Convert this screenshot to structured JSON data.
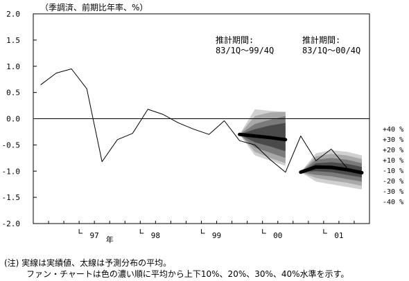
{
  "chart_data": {
    "type": "line",
    "ylabel": "（季調済、前期比年率、%）",
    "ylim": [
      -2.0,
      2.0
    ],
    "yticks": [
      "2.0",
      "1.5",
      "1.0",
      "0.5",
      "0.0",
      "-0.5",
      "-1.0",
      "-1.5",
      "-2.0"
    ],
    "yticks_values": [
      2.0,
      1.5,
      1.0,
      0.5,
      0.0,
      -0.5,
      -1.0,
      -1.5,
      -2.0
    ],
    "x_quarters": [
      "96Q2",
      "96Q3",
      "96Q4",
      "97Q1",
      "97Q2",
      "97Q3",
      "97Q4",
      "98Q1",
      "98Q2",
      "98Q3",
      "98Q4",
      "99Q1",
      "99Q2",
      "99Q3",
      "99Q4",
      "00Q1",
      "00Q2",
      "00Q3",
      "00Q4",
      "01Q1",
      "01Q2",
      "01Q3"
    ],
    "x_year_labels": [
      {
        "label": "97",
        "at_quarter": "97Q2"
      },
      {
        "label": "年",
        "at_quarter": "97Q3"
      },
      {
        "label": "98",
        "at_quarter": "98Q2"
      },
      {
        "label": "99",
        "at_quarter": "99Q2"
      },
      {
        "label": "00",
        "at_quarter": "00Q2"
      },
      {
        "label": "01",
        "at_quarter": "01Q2"
      }
    ],
    "series": [
      {
        "kind": "actual",
        "x": [
          "96Q2",
          "96Q3",
          "96Q4",
          "97Q1",
          "97Q2",
          "97Q3",
          "97Q4",
          "98Q1",
          "98Q2",
          "98Q3",
          "98Q4",
          "99Q1",
          "99Q2",
          "99Q3",
          "99Q4",
          "00Q1"
        ],
        "values": [
          0.65,
          0.87,
          0.95,
          0.57,
          -0.82,
          -0.4,
          -0.28,
          0.18,
          0.08,
          -0.08,
          -0.2,
          -0.3,
          -0.04,
          -0.42,
          -0.5,
          -0.78
        ]
      },
      {
        "kind": "actual-2",
        "x": [
          "00Q2",
          "00Q3",
          "00Q4",
          "01Q1",
          "01Q2"
        ],
        "values": [
          -1.02,
          -0.33,
          -0.8,
          -0.58,
          -0.93
        ]
      },
      {
        "kind": "forecast-mean-1",
        "x": [
          "99Q3",
          "99Q4",
          "00Q1",
          "00Q2"
        ],
        "values": [
          -0.3,
          -0.33,
          -0.36,
          -0.4
        ]
      },
      {
        "kind": "forecast-mean-2",
        "x": [
          "00Q3",
          "00Q4",
          "01Q1",
          "01Q2",
          "01Q3"
        ],
        "values": [
          -1.02,
          -0.92,
          -0.93,
          -0.97,
          -1.03
        ]
      }
    ],
    "fan_bands": [
      {
        "x": [
          "99Q3",
          "99Q4",
          "00Q1",
          "00Q2"
        ],
        "upper": [
          [
            -0.3,
            -0.2,
            -0.13,
            -0.08
          ],
          [
            -0.3,
            -0.1,
            -0.02,
            0.05
          ],
          [
            -0.3,
            0.05,
            0.12,
            0.13
          ],
          [
            -0.3,
            0.18,
            0.15,
            0.13
          ]
        ],
        "lower": [
          [
            -0.3,
            -0.45,
            -0.53,
            -0.62
          ],
          [
            -0.3,
            -0.55,
            -0.65,
            -0.75
          ],
          [
            -0.3,
            -0.63,
            -0.75,
            -0.85
          ],
          [
            -0.3,
            -0.7,
            -0.8,
            -0.9
          ]
        ]
      },
      {
        "x": [
          "00Q3",
          "00Q4",
          "01Q1",
          "01Q2",
          "01Q3"
        ],
        "upper": [
          [
            -1.02,
            -0.85,
            -0.83,
            -0.86,
            -0.92
          ],
          [
            -1.02,
            -0.78,
            -0.75,
            -0.78,
            -0.85
          ],
          [
            -1.02,
            -0.72,
            -0.67,
            -0.7,
            -0.77
          ],
          [
            -1.02,
            -0.66,
            -0.6,
            -0.63,
            -0.7
          ]
        ],
        "lower": [
          [
            -1.02,
            -1.0,
            -1.02,
            -1.07,
            -1.12
          ],
          [
            -1.02,
            -1.07,
            -1.1,
            -1.15,
            -1.2
          ],
          [
            -1.02,
            -1.13,
            -1.18,
            -1.22,
            -1.28
          ],
          [
            -1.02,
            -1.2,
            -1.25,
            -1.3,
            -1.35
          ]
        ]
      }
    ],
    "band_colors": [
      "#4a4a4a",
      "#7a7a7a",
      "#a8a8a8",
      "#d0d0d0"
    ],
    "annotations": [
      {
        "lines": [
          "推計期間:",
          "83/1Q～99/4Q"
        ]
      },
      {
        "lines": [
          "推計期間:",
          "83/1Q～00/4Q"
        ]
      }
    ],
    "fan_legend": [
      "+40 %",
      "+30 %",
      "+20 %",
      "+10 %",
      "-10 %",
      "-20 %",
      "-30 %",
      "-40 %"
    ],
    "grid": false,
    "legend": "right"
  },
  "notes": {
    "line1": "(注) 実線は実績値、太線は予測分布の平均。",
    "line2": "ファン・チャートは色の濃い順に平均から上下10%、20%、30%、40%水準を示す。"
  }
}
